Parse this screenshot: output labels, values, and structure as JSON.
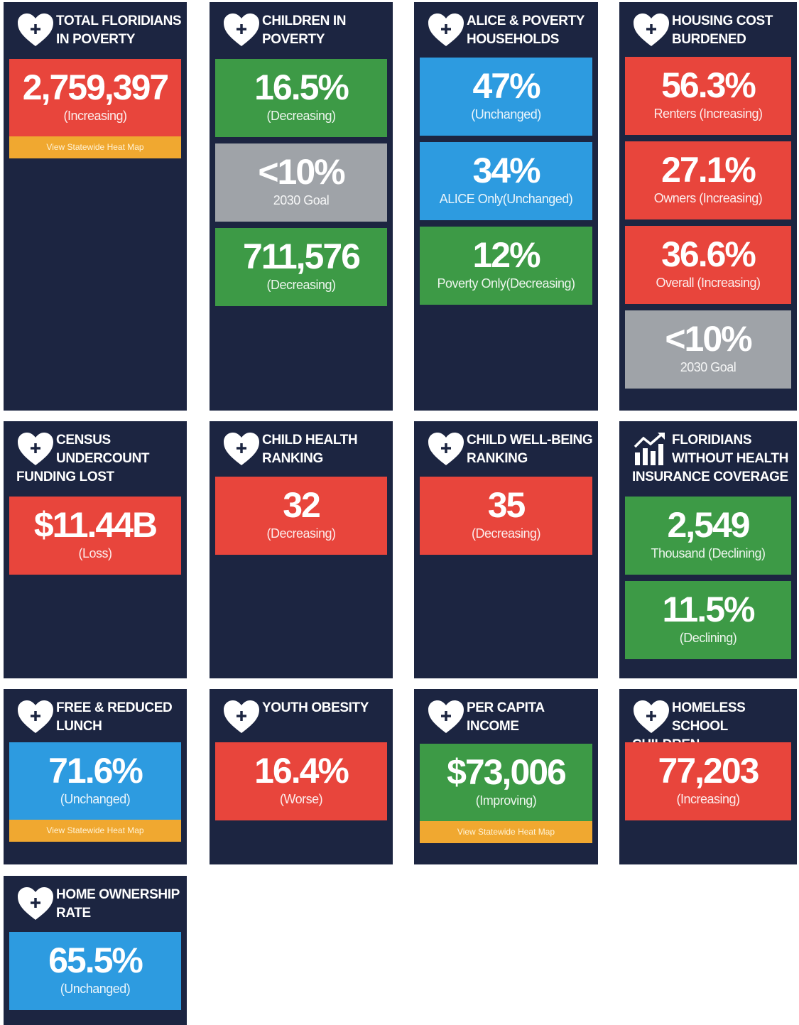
{
  "cards": [
    {
      "title": "TOTAL FLORIDIANS IN POVERTY",
      "tiles": [
        {
          "value": "2,759,397",
          "caption": "(Increasing)",
          "color": "#e8453c"
        }
      ],
      "button": "View Statewide Heat Map"
    },
    {
      "title": "CHILDREN IN POVERTY",
      "tiles": [
        {
          "value": "16.5%",
          "caption": "(Decreasing)",
          "color": "#3d9a46"
        },
        {
          "value": "<10%",
          "caption": "2030 Goal",
          "color": "#9fa3a8"
        },
        {
          "value": "711,576",
          "caption": "(Decreasing)",
          "color": "#3d9a46"
        }
      ]
    },
    {
      "title": "ALICE & POVERTY HOUSEHOLDS",
      "tiles": [
        {
          "value": "47%",
          "caption": "(Unchanged)",
          "color": "#2d9be0"
        },
        {
          "value": "34%",
          "caption": "ALICE Only(Unchanged)",
          "color": "#2d9be0"
        },
        {
          "value": "12%",
          "caption": "Poverty Only(Decreasing)",
          "color": "#3d9a46"
        }
      ]
    },
    {
      "title": "HOUSING COST BURDENED",
      "tiles": [
        {
          "value": "56.3%",
          "caption": "Renters (Increasing)",
          "color": "#e8453c"
        },
        {
          "value": "27.1%",
          "caption": "Owners (Increasing)",
          "color": "#e8453c"
        },
        {
          "value": "36.6%",
          "caption": "Overall (Increasing)",
          "color": "#e8453c"
        },
        {
          "value": "<10%",
          "caption": "2030 Goal",
          "color": "#9fa3a8"
        }
      ]
    },
    {
      "title": "CENSUS UNDERCOUNT FUNDING LOST",
      "tiles": [
        {
          "value": "$11.44B",
          "caption": "(Loss)",
          "color": "#e8453c"
        }
      ]
    },
    {
      "title": "CHILD HEALTH RANKING",
      "tiles": [
        {
          "value": "32",
          "caption": "(Decreasing)",
          "color": "#e8453c"
        }
      ]
    },
    {
      "title": "CHILD WELL-BEING RANKING",
      "tiles": [
        {
          "value": "35",
          "caption": "(Decreasing)",
          "color": "#e8453c"
        }
      ]
    },
    {
      "title": "FLORIDIANS WITHOUT HEALTH INSURANCE COVERAGE",
      "tiles": [
        {
          "value": "2,549",
          "caption": "Thousand (Declining)",
          "color": "#3d9a46"
        },
        {
          "value": "11.5%",
          "caption": "(Declining)",
          "color": "#3d9a46"
        }
      ]
    },
    {
      "title": "FREE & REDUCED LUNCH",
      "tiles": [
        {
          "value": "71.6%",
          "caption": "(Unchanged)",
          "color": "#2d9be0"
        }
      ],
      "button": "View Statewide Heat Map"
    },
    {
      "title": "YOUTH OBESITY",
      "tiles": [
        {
          "value": "16.4%",
          "caption": "(Worse)",
          "color": "#e8453c"
        }
      ]
    },
    {
      "title": "PER CAPITA INCOME",
      "tiles": [
        {
          "value": "$73,006",
          "caption": "(Improving)",
          "color": "#3d9a46"
        }
      ],
      "button": "View Statewide Heat Map"
    },
    {
      "title": "HOMELESS SCHOOL CHILDREN",
      "tiles": [
        {
          "value": "77,203",
          "caption": "(Increasing)",
          "color": "#e8453c"
        }
      ]
    },
    {
      "title": "HOME OWNERSHIP RATE",
      "tiles": [
        {
          "value": "65.5%",
          "caption": "(Unchanged)",
          "color": "#2d9be0"
        }
      ]
    }
  ]
}
